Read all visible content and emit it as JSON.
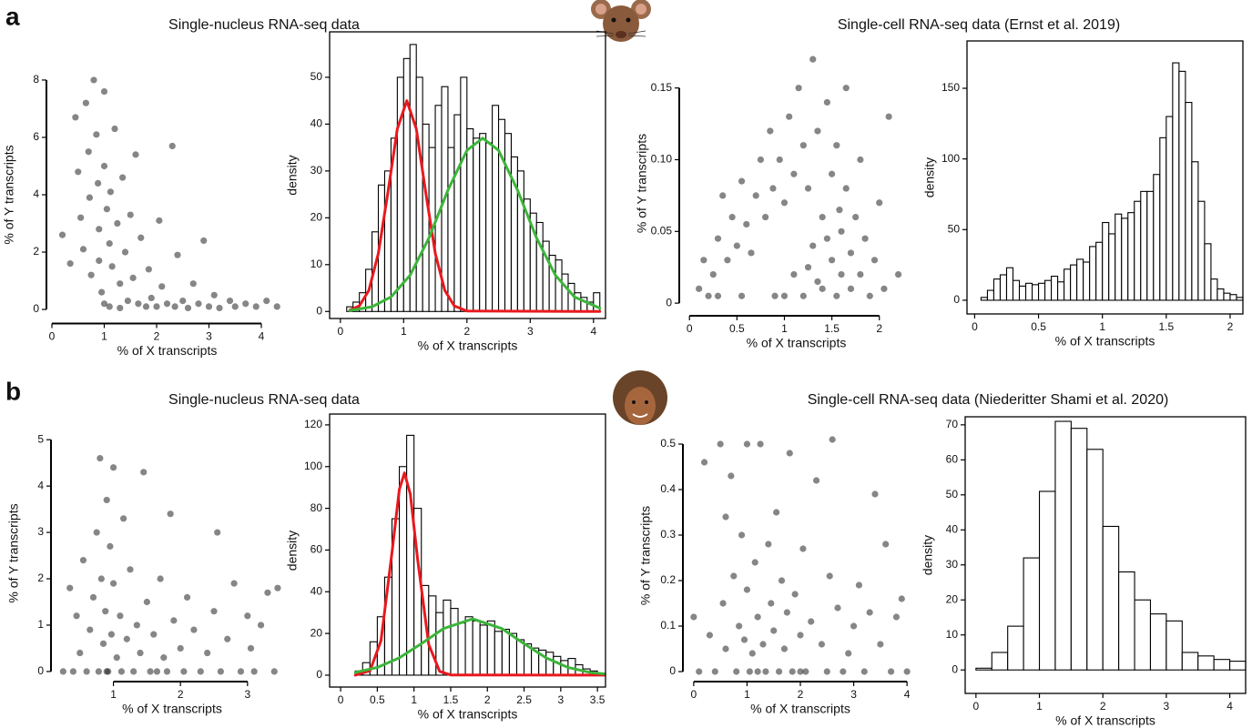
{
  "panels": [
    {
      "label": "a",
      "left_title": "Single-nucleus RNA-seq data",
      "right_title": "Single-cell RNA-seq data (Ernst et al. 2019)"
    },
    {
      "label": "b",
      "left_title": "Single-nucleus RNA-seq data",
      "right_title": "Single-cell RNA-seq data (Niederitter Shami et al. 2020)"
    }
  ],
  "chart_data": [
    {
      "type": "scatter",
      "x_label": "% of X transcripts",
      "y_label": "% of Y transcripts",
      "frame": false,
      "color": "#222222",
      "opacity": 0.55,
      "xlim": [
        0,
        4.4
      ],
      "ylim": [
        -0.3,
        8.3
      ],
      "xticks": [
        0,
        1,
        2,
        3,
        4
      ],
      "yticks": [
        0,
        2,
        4,
        6,
        8
      ],
      "x": [
        0.2,
        0.35,
        0.45,
        0.5,
        0.55,
        0.6,
        0.65,
        0.7,
        0.72,
        0.75,
        0.8,
        0.85,
        0.88,
        0.9,
        0.95,
        1.0,
        1.0,
        1.05,
        1.1,
        1.12,
        1.15,
        1.2,
        1.25,
        1.3,
        1.35,
        1.4,
        1.45,
        1.5,
        1.55,
        1.6,
        1.65,
        1.7,
        1.8,
        1.85,
        1.9,
        2.0,
        2.05,
        2.1,
        2.2,
        2.3,
        2.35,
        2.4,
        2.5,
        2.6,
        2.7,
        2.8,
        2.9,
        3.0,
        3.1,
        3.2,
        3.4,
        3.5,
        3.7,
        3.9,
        4.1,
        4.3,
        1.1,
        1.3,
        0.9,
        1.0
      ],
      "values": [
        2.6,
        1.6,
        6.7,
        4.8,
        3.2,
        2.1,
        7.2,
        5.5,
        3.9,
        1.2,
        8.0,
        6.1,
        4.4,
        2.8,
        0.6,
        7.6,
        5.0,
        3.5,
        2.3,
        4.1,
        1.5,
        6.3,
        3.0,
        0.9,
        4.6,
        2.0,
        0.3,
        3.3,
        1.1,
        5.4,
        0.2,
        2.5,
        0.1,
        1.4,
        0.4,
        0.1,
        3.1,
        0.8,
        0.2,
        5.7,
        0.1,
        1.9,
        0.3,
        0.05,
        0.9,
        0.2,
        2.4,
        0.1,
        0.5,
        0.05,
        0.3,
        0.1,
        0.2,
        0.1,
        0.3,
        0.1,
        0.1,
        0.05,
        1.7,
        0.2
      ]
    },
    {
      "type": "histogram",
      "x_label": "% of X transcripts",
      "y_label": "density",
      "frame": true,
      "color": "#ffffff",
      "edge_color": "#000000",
      "xlim": [
        -0.17,
        4.19
      ],
      "ylim": [
        -1.5,
        59.7
      ],
      "xticks": [
        0,
        1,
        2,
        3,
        4
      ],
      "yticks": [
        0,
        10,
        20,
        30,
        40,
        50
      ],
      "bins": [
        0.1,
        0.2,
        0.3,
        0.4,
        0.5,
        0.6,
        0.7,
        0.8,
        0.9,
        1.0,
        1.1,
        1.2,
        1.3,
        1.4,
        1.5,
        1.6,
        1.7,
        1.8,
        1.9,
        2.0,
        2.1,
        2.2,
        2.3,
        2.4,
        2.5,
        2.6,
        2.7,
        2.8,
        2.9,
        3.0,
        3.1,
        3.2,
        3.3,
        3.4,
        3.5,
        3.6,
        3.7,
        3.8,
        3.9,
        4.0,
        4.1
      ],
      "values": [
        1,
        2,
        4,
        9,
        17,
        27,
        30,
        37,
        50,
        54,
        57,
        50,
        40,
        35,
        44,
        48,
        35,
        42,
        50,
        39,
        37,
        38,
        36,
        44,
        41,
        38,
        33,
        30,
        24,
        21,
        19,
        15,
        12,
        11,
        8,
        6,
        4,
        3,
        2,
        4
      ],
      "curves": [
        {
          "color": "#e8191e",
          "x": [
            0.15,
            0.3,
            0.45,
            0.6,
            0.75,
            0.9,
            1.05,
            1.2,
            1.35,
            1.5,
            1.65,
            1.8,
            2.0,
            4.1
          ],
          "values": [
            0.3,
            1.2,
            4.5,
            12.4,
            25.3,
            39,
            45,
            39,
            25.3,
            12.4,
            4.5,
            1.2,
            0.1,
            0
          ]
        },
        {
          "color": "#3cb53a",
          "x": [
            0.15,
            0.5,
            0.8,
            1.1,
            1.4,
            1.7,
            2.0,
            2.25,
            2.5,
            2.8,
            3.1,
            3.4,
            3.7,
            4.1
          ],
          "values": [
            0.2,
            1,
            3.1,
            7.7,
            15.7,
            25.9,
            34.4,
            37,
            34.4,
            25.9,
            15.7,
            7.7,
            3.1,
            0.7
          ]
        }
      ]
    },
    {
      "type": "scatter",
      "x_label": "% of X transcripts",
      "y_label": "% of Y transcripts",
      "frame": false,
      "color": "#222222",
      "opacity": 0.55,
      "xlim": [
        -0.05,
        2.3
      ],
      "ylim": [
        -0.005,
        0.172
      ],
      "xticks": [
        0,
        0.5,
        1,
        1.5,
        2
      ],
      "yticks": [
        0,
        0.05,
        {
          "value": 0.1,
          "label": "0.10"
        },
        0.15
      ],
      "x": [
        0.1,
        0.15,
        0.2,
        0.25,
        0.3,
        0.35,
        0.4,
        0.45,
        0.5,
        0.55,
        0.6,
        0.65,
        0.7,
        0.75,
        0.8,
        0.85,
        0.88,
        0.9,
        0.95,
        1.0,
        1.05,
        1.1,
        1.1,
        1.15,
        1.2,
        1.2,
        1.25,
        1.3,
        1.3,
        1.35,
        1.4,
        1.4,
        1.45,
        1.5,
        1.5,
        1.55,
        1.55,
        1.6,
        1.6,
        1.65,
        1.65,
        1.7,
        1.7,
        1.75,
        1.8,
        1.8,
        1.85,
        1.9,
        1.95,
        2.0,
        2.05,
        2.1,
        2.2,
        0.55,
        0.3,
        1.0,
        1.25,
        1.45,
        1.35,
        1.58
      ],
      "values": [
        0.01,
        0.03,
        0.005,
        0.02,
        0.045,
        0.075,
        0.03,
        0.06,
        0.04,
        0.085,
        0.055,
        0.035,
        0.075,
        0.1,
        0.06,
        0.12,
        0.08,
        0.005,
        0.1,
        0.07,
        0.13,
        0.09,
        0.02,
        0.15,
        0.11,
        0.005,
        0.08,
        0.17,
        0.04,
        0.12,
        0.06,
        0.01,
        0.14,
        0.03,
        0.09,
        0.11,
        0.005,
        0.05,
        0.02,
        0.08,
        0.15,
        0.035,
        0.01,
        0.06,
        0.1,
        0.02,
        0.045,
        0.005,
        0.03,
        0.07,
        0.01,
        0.13,
        0.02,
        0.005,
        0.005,
        0.005,
        0.025,
        0.045,
        0.015,
        0.065
      ]
    },
    {
      "type": "histogram",
      "x_label": "% of X transcripts",
      "y_label": "density",
      "frame": true,
      "color": "#ffffff",
      "edge_color": "#000000",
      "xlim": [
        -0.06,
        2.1
      ],
      "ylim": [
        -9.7,
        183.5
      ],
      "xticks": [
        0,
        0.5,
        1,
        1.5,
        2
      ],
      "yticks": [
        0,
        50,
        100,
        150
      ],
      "bins": [
        0.05,
        0.1,
        0.15,
        0.2,
        0.25,
        0.3,
        0.35,
        0.4,
        0.45,
        0.5,
        0.55,
        0.6,
        0.65,
        0.7,
        0.75,
        0.8,
        0.85,
        0.9,
        0.95,
        1,
        1.05,
        1.1,
        1.15,
        1.2,
        1.25,
        1.3,
        1.35,
        1.4,
        1.45,
        1.5,
        1.55,
        1.6,
        1.65,
        1.7,
        1.75,
        1.8,
        1.85,
        1.9,
        1.95,
        2,
        2.05,
        2.1
      ],
      "values": [
        2,
        7,
        15,
        18,
        23,
        14,
        10,
        12,
        11,
        12,
        14,
        17,
        13,
        22,
        25,
        29,
        27,
        38,
        41,
        55,
        47,
        61,
        58,
        62,
        70,
        77,
        77,
        89,
        115,
        130,
        168,
        162,
        140,
        98,
        70,
        40,
        15,
        8,
        5,
        4,
        2
      ],
      "curves": []
    },
    {
      "type": "scatter",
      "x_label": "% of X transcripts",
      "y_label": "% of Y transcripts",
      "frame": false,
      "color": "#222222",
      "opacity": 0.55,
      "xlim": [
        0.15,
        3.6
      ],
      "ylim": [
        -0.1,
        5.2
      ],
      "xticks": [
        1,
        2,
        3
      ],
      "yticks": [
        0,
        1,
        2,
        3,
        4,
        5
      ],
      "x": [
        0.25,
        0.35,
        0.4,
        0.45,
        0.5,
        0.55,
        0.6,
        0.65,
        0.7,
        0.75,
        0.78,
        0.8,
        0.82,
        0.85,
        0.88,
        0.9,
        0.92,
        0.95,
        0.97,
        1.0,
        1.0,
        1.05,
        1.1,
        1.12,
        1.15,
        1.2,
        1.25,
        1.3,
        1.35,
        1.4,
        1.45,
        1.5,
        1.55,
        1.6,
        1.7,
        1.75,
        1.8,
        1.85,
        1.9,
        2.0,
        2.05,
        2.1,
        2.2,
        2.3,
        2.4,
        2.5,
        2.55,
        2.6,
        2.7,
        2.8,
        2.9,
        3.0,
        3.05,
        3.1,
        3.2,
        3.3,
        3.4,
        3.45,
        0.9,
        1.65
      ],
      "values": [
        0,
        1.8,
        0,
        1.2,
        0.4,
        2.4,
        0,
        0.9,
        1.6,
        3.0,
        0,
        4.6,
        2.0,
        0.6,
        1.3,
        3.7,
        0,
        2.7,
        0.8,
        1.9,
        4.4,
        0.3,
        1.2,
        0,
        3.3,
        0.7,
        2.2,
        0,
        1.0,
        0.4,
        4.3,
        1.5,
        0,
        0.8,
        2.0,
        0.3,
        0,
        3.4,
        1.1,
        0.5,
        0,
        1.6,
        0.9,
        0,
        0.4,
        1.3,
        3.0,
        0,
        0.7,
        1.9,
        0,
        1.2,
        0.5,
        0,
        1.0,
        1.7,
        0,
        1.8,
        0,
        0
      ]
    },
    {
      "type": "histogram",
      "x_label": "% of X transcripts",
      "y_label": "density",
      "frame": true,
      "color": "#ffffff",
      "edge_color": "#000000",
      "xlim": [
        -0.15,
        3.61
      ],
      "ylim": [
        -5.7,
        125.2
      ],
      "xticks": [
        0,
        0.5,
        1,
        1.5,
        2,
        2.5,
        3,
        3.5
      ],
      "yticks": [
        0,
        20,
        40,
        60,
        80,
        100,
        120
      ],
      "bins": [
        0.2,
        0.3,
        0.4,
        0.5,
        0.6,
        0.7,
        0.8,
        0.9,
        1.0,
        1.1,
        1.2,
        1.3,
        1.4,
        1.5,
        1.6,
        1.7,
        1.8,
        1.9,
        2.0,
        2.1,
        2.2,
        2.3,
        2.4,
        2.5,
        2.6,
        2.7,
        2.8,
        2.9,
        3.0,
        3.1,
        3.2,
        3.3,
        3.4,
        3.5,
        3.6
      ],
      "values": [
        2,
        6,
        16,
        28,
        47,
        75,
        100,
        115,
        80,
        43,
        38,
        30,
        36,
        32,
        25,
        28,
        26,
        24,
        26,
        21,
        22,
        20,
        17,
        15,
        13,
        12,
        11,
        9,
        7,
        8,
        5,
        3,
        2,
        1
      ],
      "curves": [
        {
          "color": "#e8191e",
          "x": [
            0.2,
            0.4,
            0.55,
            0.7,
            0.8,
            0.87,
            0.95,
            1.05,
            1.2,
            1.35,
            1.5,
            3.6
          ],
          "values": [
            0,
            2.1,
            16.5,
            58.8,
            89,
            97,
            86.8,
            55.4,
            14.8,
            1.8,
            0.1,
            0
          ]
        },
        {
          "color": "#3cb53a",
          "x": [
            0.2,
            0.5,
            0.8,
            1.1,
            1.4,
            1.8,
            2.2,
            2.5,
            2.8,
            3.1,
            3.4,
            3.6
          ],
          "values": [
            1.3,
            3.7,
            8.3,
            15.1,
            22.3,
            27,
            22.3,
            15.1,
            8.3,
            3.7,
            1.3,
            0.6
          ]
        }
      ]
    },
    {
      "type": "scatter",
      "x_label": "% of X transcripts",
      "y_label": "% of Y transcripts",
      "frame": false,
      "color": "#222222",
      "opacity": 0.55,
      "xlim": [
        -0.1,
        4.1
      ],
      "ylim": [
        -0.01,
        0.52
      ],
      "xticks": [
        0,
        1,
        2,
        3,
        4
      ],
      "yticks": [
        0,
        0.1,
        0.2,
        0.3,
        0.4,
        0.5
      ],
      "x": [
        0.0,
        0.1,
        0.2,
        0.3,
        0.4,
        0.5,
        0.55,
        0.6,
        0.7,
        0.75,
        0.8,
        0.85,
        0.9,
        0.95,
        1.0,
        1.0,
        1.05,
        1.1,
        1.15,
        1.2,
        1.25,
        1.3,
        1.35,
        1.4,
        1.45,
        1.5,
        1.55,
        1.6,
        1.65,
        1.7,
        1.75,
        1.8,
        1.85,
        1.9,
        2.0,
        2.05,
        2.1,
        2.2,
        2.3,
        2.4,
        2.5,
        2.55,
        2.6,
        2.7,
        2.8,
        2.9,
        3.0,
        3.1,
        3.2,
        3.3,
        3.5,
        3.6,
        3.7,
        3.8,
        3.9,
        4.0,
        1.2,
        2.0,
        0.6,
        3.4
      ],
      "values": [
        0.12,
        0,
        0.46,
        0.08,
        0,
        0.5,
        0.15,
        0.05,
        0.43,
        0.21,
        0,
        0.1,
        0.3,
        0.07,
        0.5,
        0.18,
        0,
        0.04,
        0.24,
        0.12,
        0.5,
        0.06,
        0,
        0.28,
        0.15,
        0.09,
        0.35,
        0,
        0.2,
        0.05,
        0.13,
        0.48,
        0,
        0.17,
        0.08,
        0.27,
        0,
        0.11,
        0.42,
        0.06,
        0,
        0.21,
        0.51,
        0.14,
        0,
        0.04,
        0.1,
        0.19,
        0,
        0.13,
        0.06,
        0.28,
        0,
        0.12,
        0.16,
        0,
        0,
        0,
        0.34,
        0.39
      ]
    },
    {
      "type": "histogram",
      "x_label": "% of X transcripts",
      "y_label": "density",
      "frame": true,
      "color": "#ffffff",
      "edge_color": "#000000",
      "xlim": [
        -0.17,
        4.25
      ],
      "ylim": [
        -6.7,
        72.3
      ],
      "xticks": [
        0,
        1,
        2,
        3,
        4
      ],
      "yticks": [
        0,
        10,
        20,
        30,
        40,
        50,
        60,
        70
      ],
      "bins": [
        0,
        0.25,
        0.5,
        0.75,
        1,
        1.25,
        1.5,
        1.75,
        2,
        2.25,
        2.5,
        2.75,
        3,
        3.25,
        3.5,
        3.75,
        4,
        4.25
      ],
      "values": [
        0.5,
        5,
        12.5,
        32,
        51,
        71,
        69,
        63,
        41,
        28,
        20,
        16,
        14,
        5,
        4,
        3,
        2.5
      ],
      "curves": []
    }
  ]
}
